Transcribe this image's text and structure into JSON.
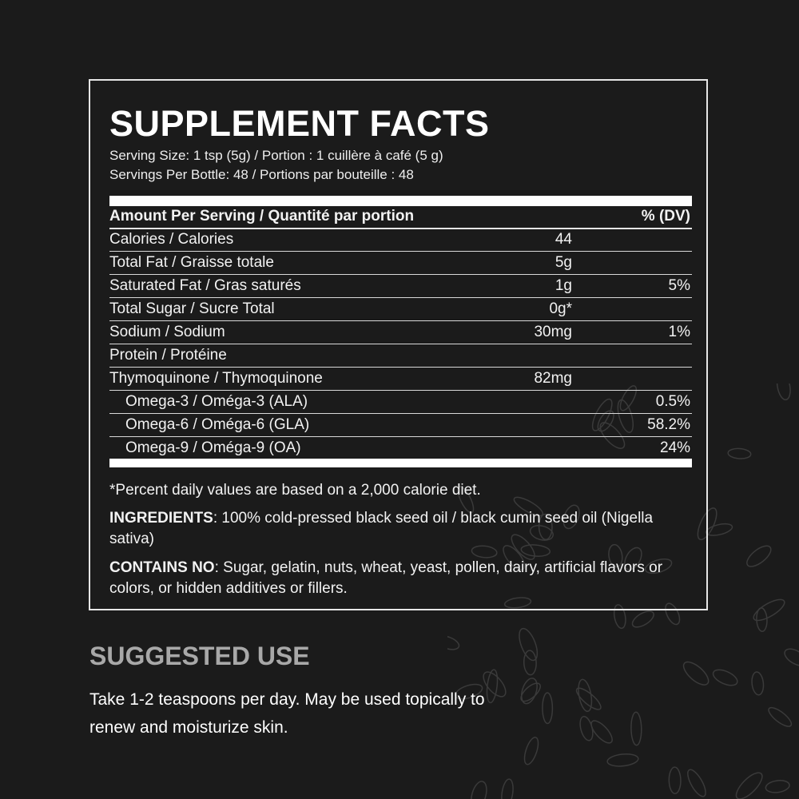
{
  "facts": {
    "title": "SUPPLEMENT FACTS",
    "serving_size": "Serving Size: 1 tsp (5g) / Portion : 1 cuillère à café (5 g)",
    "servings_per": "Servings Per Bottle: 48 / Portions par bouteille : 48",
    "header": {
      "label": "Amount Per Serving / Quantité par portion",
      "dv": "% (DV)"
    },
    "rows": [
      {
        "label": "Calories / Calories",
        "amount": "44",
        "dv": ""
      },
      {
        "label": "Total Fat / Graisse totale",
        "amount": "5g",
        "dv": ""
      },
      {
        "label": "Saturated Fat  / Gras saturés",
        "amount": "1g",
        "dv": "5%"
      },
      {
        "label": "Total Sugar / Sucre Total",
        "amount": "0g*",
        "dv": ""
      },
      {
        "label": "Sodium / Sodium",
        "amount": "30mg",
        "dv": "1%"
      },
      {
        "label": "Protein / Protéine",
        "amount": "",
        "dv": ""
      },
      {
        "label": "Thymoquinone / Thymoquinone",
        "amount": "82mg",
        "dv": ""
      },
      {
        "label": "Omega-3 / Oméga-3 (ALA)",
        "amount": "",
        "dv": "0.5%",
        "indent": true
      },
      {
        "label": "Omega-6 / Oméga-6 (GLA)",
        "amount": "",
        "dv": "58.2%",
        "indent": true
      },
      {
        "label": "Omega-9 / Oméga-9 (OA)",
        "amount": "",
        "dv": "24%",
        "indent": true
      }
    ],
    "footnote": "*Percent daily values are based on a  2,000 calorie diet.",
    "ingredients_label": "INGREDIENTS",
    "ingredients_text": ": 100% cold-pressed black seed oil / black cumin seed oil (Nigella sativa)",
    "contains_label": "CONTAINS NO",
    "contains_text": ": Sugar, gelatin, nuts, wheat, yeast, pollen, dairy, artificial flavors or colors, or hidden additives or fillers."
  },
  "suggested_use": {
    "heading": "SUGGESTED USE",
    "text": "Take 1-2 teaspoons per day. May be used topically to renew and moisturize skin."
  },
  "colors": {
    "background": "#1b1b1b",
    "text": "#ffffff",
    "heading_gray": "#a8a8a8"
  },
  "decoration": "black-seeds-illustration"
}
